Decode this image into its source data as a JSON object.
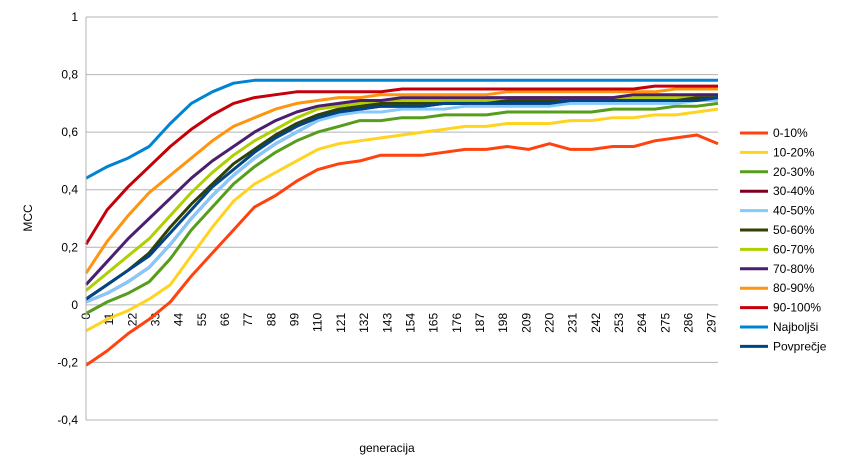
{
  "chart_data": {
    "type": "line",
    "title": "",
    "xlabel": "generacija",
    "ylabel": "MCC",
    "ylim": [
      -0.4,
      1
    ],
    "y_ticks": [
      "-0,4",
      "-0,2",
      "0",
      "0,2",
      "0,4",
      "0,6",
      "0,8",
      "1"
    ],
    "x_ticks": [
      "0",
      "11",
      "22",
      "33",
      "44",
      "55",
      "66",
      "77",
      "88",
      "99",
      "110",
      "121",
      "132",
      "143",
      "154",
      "165",
      "176",
      "187",
      "198",
      "209",
      "220",
      "231",
      "242",
      "253",
      "264",
      "275",
      "286",
      "297"
    ],
    "x_range": [
      0,
      300
    ],
    "grid": "horizontal",
    "legend_position": "right",
    "x": [
      0,
      10,
      20,
      30,
      40,
      50,
      60,
      70,
      80,
      90,
      100,
      110,
      120,
      130,
      140,
      150,
      160,
      170,
      180,
      190,
      200,
      210,
      220,
      230,
      240,
      250,
      260,
      270,
      280,
      290,
      300
    ],
    "series": [
      {
        "name": "0-10%",
        "color": "#ff420e",
        "values": [
          -0.21,
          -0.16,
          -0.1,
          -0.05,
          0.01,
          0.1,
          0.18,
          0.26,
          0.34,
          0.38,
          0.43,
          0.47,
          0.49,
          0.5,
          0.52,
          0.52,
          0.52,
          0.53,
          0.54,
          0.54,
          0.55,
          0.54,
          0.56,
          0.54,
          0.54,
          0.55,
          0.55,
          0.57,
          0.58,
          0.59,
          0.56
        ]
      },
      {
        "name": "10-20%",
        "color": "#ffd320",
        "values": [
          -0.09,
          -0.05,
          -0.02,
          0.02,
          0.07,
          0.17,
          0.27,
          0.36,
          0.42,
          0.46,
          0.5,
          0.54,
          0.56,
          0.57,
          0.58,
          0.59,
          0.6,
          0.61,
          0.62,
          0.62,
          0.63,
          0.63,
          0.63,
          0.64,
          0.64,
          0.65,
          0.65,
          0.66,
          0.66,
          0.67,
          0.68
        ]
      },
      {
        "name": "20-30%",
        "color": "#579d1c",
        "values": [
          -0.03,
          0.01,
          0.04,
          0.08,
          0.16,
          0.26,
          0.34,
          0.42,
          0.48,
          0.53,
          0.57,
          0.6,
          0.62,
          0.64,
          0.64,
          0.65,
          0.65,
          0.66,
          0.66,
          0.66,
          0.67,
          0.67,
          0.67,
          0.67,
          0.67,
          0.68,
          0.68,
          0.68,
          0.69,
          0.69,
          0.7
        ]
      },
      {
        "name": "30-40%",
        "color": "#7e0021",
        "values": [
          0.01,
          0.04,
          0.08,
          0.13,
          0.21,
          0.3,
          0.38,
          0.45,
          0.51,
          0.56,
          0.6,
          0.64,
          0.67,
          0.68,
          0.69,
          0.69,
          0.69,
          0.7,
          0.7,
          0.7,
          0.7,
          0.7,
          0.7,
          0.71,
          0.71,
          0.71,
          0.71,
          0.71,
          0.71,
          0.72,
          0.72
        ]
      },
      {
        "name": "40-50%",
        "color": "#83caff",
        "values": [
          0.01,
          0.04,
          0.08,
          0.13,
          0.21,
          0.3,
          0.38,
          0.45,
          0.51,
          0.56,
          0.6,
          0.64,
          0.66,
          0.67,
          0.67,
          0.68,
          0.68,
          0.68,
          0.69,
          0.69,
          0.69,
          0.69,
          0.69,
          0.7,
          0.7,
          0.7,
          0.7,
          0.7,
          0.7,
          0.71,
          0.71
        ]
      },
      {
        "name": "50-60%",
        "color": "#314004",
        "values": [
          0.02,
          0.07,
          0.12,
          0.18,
          0.27,
          0.35,
          0.42,
          0.49,
          0.54,
          0.59,
          0.63,
          0.66,
          0.68,
          0.69,
          0.7,
          0.7,
          0.7,
          0.7,
          0.7,
          0.71,
          0.71,
          0.71,
          0.71,
          0.71,
          0.71,
          0.71,
          0.71,
          0.71,
          0.71,
          0.72,
          0.72
        ]
      },
      {
        "name": "60-70%",
        "color": "#aecf00",
        "values": [
          0.05,
          0.11,
          0.17,
          0.23,
          0.31,
          0.39,
          0.46,
          0.52,
          0.57,
          0.61,
          0.65,
          0.68,
          0.69,
          0.7,
          0.71,
          0.71,
          0.71,
          0.71,
          0.71,
          0.71,
          0.72,
          0.72,
          0.72,
          0.72,
          0.72,
          0.72,
          0.72,
          0.72,
          0.72,
          0.73,
          0.73
        ]
      },
      {
        "name": "70-80%",
        "color": "#4b1f6f",
        "values": [
          0.07,
          0.15,
          0.23,
          0.3,
          0.37,
          0.44,
          0.5,
          0.55,
          0.6,
          0.64,
          0.67,
          0.69,
          0.7,
          0.71,
          0.71,
          0.72,
          0.72,
          0.72,
          0.72,
          0.72,
          0.72,
          0.72,
          0.72,
          0.72,
          0.72,
          0.72,
          0.73,
          0.73,
          0.73,
          0.73,
          0.73
        ]
      },
      {
        "name": "80-90%",
        "color": "#ff950e",
        "values": [
          0.11,
          0.22,
          0.31,
          0.39,
          0.45,
          0.51,
          0.57,
          0.62,
          0.65,
          0.68,
          0.7,
          0.71,
          0.72,
          0.72,
          0.73,
          0.73,
          0.73,
          0.73,
          0.73,
          0.73,
          0.74,
          0.74,
          0.74,
          0.74,
          0.74,
          0.74,
          0.74,
          0.74,
          0.75,
          0.75,
          0.75
        ]
      },
      {
        "name": "90-100%",
        "color": "#c5000b",
        "values": [
          0.21,
          0.33,
          0.41,
          0.48,
          0.55,
          0.61,
          0.66,
          0.7,
          0.72,
          0.73,
          0.74,
          0.74,
          0.74,
          0.74,
          0.74,
          0.75,
          0.75,
          0.75,
          0.75,
          0.75,
          0.75,
          0.75,
          0.75,
          0.75,
          0.75,
          0.75,
          0.75,
          0.76,
          0.76,
          0.76,
          0.76
        ]
      },
      {
        "name": "Najboljši",
        "color": "#0084d1",
        "values": [
          0.44,
          0.48,
          0.51,
          0.55,
          0.63,
          0.7,
          0.74,
          0.77,
          0.78,
          0.78,
          0.78,
          0.78,
          0.78,
          0.78,
          0.78,
          0.78,
          0.78,
          0.78,
          0.78,
          0.78,
          0.78,
          0.78,
          0.78,
          0.78,
          0.78,
          0.78,
          0.78,
          0.78,
          0.78,
          0.78,
          0.78
        ]
      },
      {
        "name": "Povprečje",
        "color": "#004586",
        "values": [
          0.02,
          0.07,
          0.12,
          0.17,
          0.25,
          0.33,
          0.41,
          0.47,
          0.53,
          0.58,
          0.62,
          0.65,
          0.67,
          0.68,
          0.69,
          0.69,
          0.69,
          0.7,
          0.7,
          0.7,
          0.7,
          0.7,
          0.7,
          0.71,
          0.71,
          0.71,
          0.71,
          0.71,
          0.71,
          0.71,
          0.72
        ]
      }
    ]
  }
}
